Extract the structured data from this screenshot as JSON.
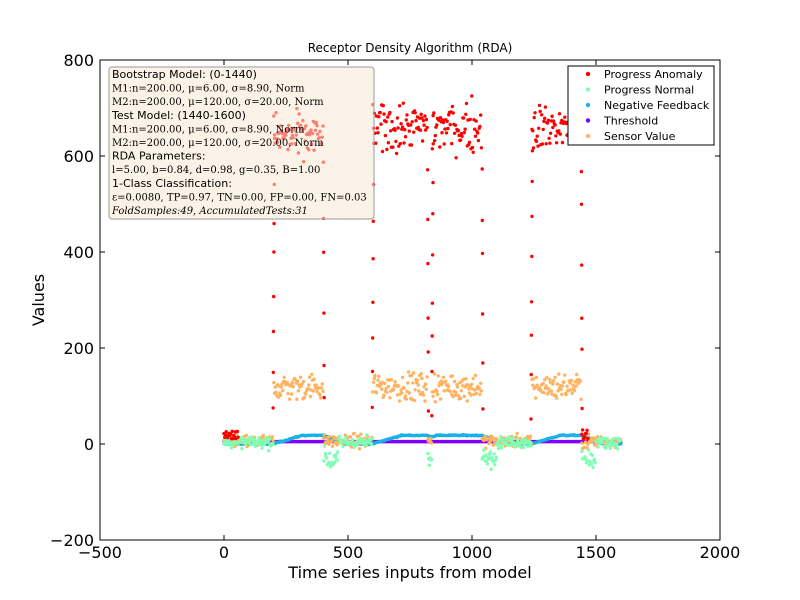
{
  "chart_data": {
    "type": "scatter",
    "title": "Receptor Density Algorithm (RDA)",
    "xlabel": "Time series inputs from model",
    "ylabel": "Values",
    "xlim": [
      -500,
      2000
    ],
    "ylim": [
      -200,
      800
    ],
    "x_ticks": [
      "−500",
      "0",
      "500",
      "1000",
      "1500",
      "2000"
    ],
    "y_ticks": [
      "−200",
      "0",
      "200",
      "400",
      "600",
      "800"
    ],
    "x_tick_values": [
      -500,
      0,
      500,
      1000,
      1500,
      2000
    ],
    "y_tick_values": [
      -200,
      0,
      200,
      400,
      600,
      800
    ],
    "grid": false,
    "legend_position": "top-right",
    "series": [
      {
        "name": "Progress Anomaly",
        "color": "#ff0000",
        "marker": "dot"
      },
      {
        "name": "Progress Normal",
        "color": "#80ffb4",
        "marker": "dot"
      },
      {
        "name": "Negative Feedback",
        "color": "#1ab2e6",
        "marker": "dot"
      },
      {
        "name": "Threshold",
        "color": "#8000ff",
        "marker": "dot"
      },
      {
        "name": "Sensor Value",
        "color": "#ffb360",
        "marker": "dot"
      }
    ],
    "data_summary": {
      "sensor_high_segments": [
        {
          "x_range": [
            200,
            400
          ],
          "y_center": 120
        },
        {
          "x_range": [
            600,
            820
          ],
          "y_center": 120
        },
        {
          "x_range": [
            840,
            1040
          ],
          "y_center": 120
        },
        {
          "x_range": [
            1240,
            1440
          ],
          "y_center": 120
        }
      ],
      "anomaly_high_segments": [
        {
          "x_range": [
            200,
            400
          ],
          "y_center": 640
        },
        {
          "x_range": [
            600,
            820
          ],
          "y_center": 660
        },
        {
          "x_range": [
            840,
            1040
          ],
          "y_center": 660
        },
        {
          "x_range": [
            1240,
            1440
          ],
          "y_center": 660
        }
      ],
      "threshold_level": 5,
      "negative_feedback_plateau": 18,
      "x_range_total": [
        0,
        1600
      ]
    },
    "annotation_lines": [
      "Bootstrap Model: (0-1440)",
      "M1:n=200.00, μ=6.00, σ=8.90, Norm",
      "M2:n=200.00, μ=120.00, σ=20.00, Norm",
      "Test Model: (1440-1600)",
      "M1:n=200.00, μ=6.00, σ=8.90, Norm",
      "M2:n=200.00, μ=120.00, σ=20.00, Norm",
      "RDA Parameters:",
      "l=5.00, b=0.84, d=0.98, g=0.35, B=1.00",
      "1-Class Classification:",
      "ε=0.0080, TP=0.97, TN=0.00, FP=0.00, FN=0.03",
      "FoldSamples:49, AccumulatedTests:31"
    ]
  }
}
